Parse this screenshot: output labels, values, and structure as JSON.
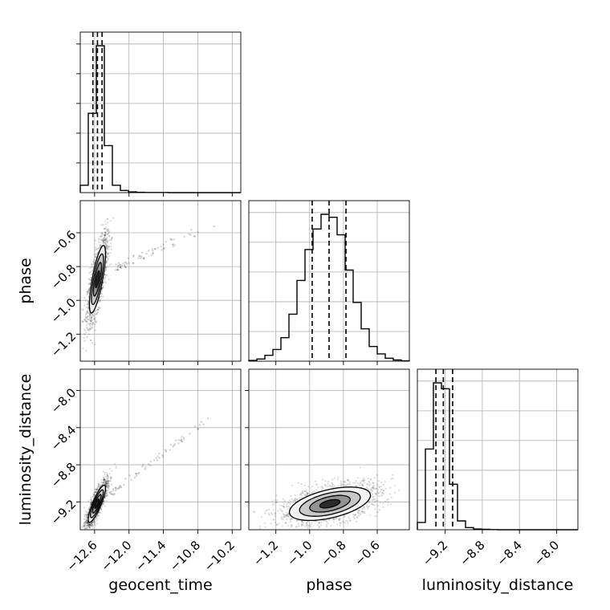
{
  "chart_data": {
    "type": "corner",
    "parameters": [
      "geocent_time",
      "phase",
      "luminosity_distance"
    ],
    "axis_labels": {
      "x": [
        "geocent_time",
        "phase",
        "luminosity_distance"
      ],
      "y": [
        "",
        "phase",
        "luminosity_distance"
      ]
    },
    "ranges": [
      [
        -12.85,
        -10.05
      ],
      [
        -1.36,
        -0.41
      ],
      [
        -9.5,
        -7.77
      ]
    ],
    "ticks": [
      {
        "values": [
          -12.6,
          -12.0,
          -11.4,
          -10.8,
          -10.2
        ],
        "labels": [
          "−12.6",
          "−12.0",
          "−11.4",
          "−10.8",
          "−10.2"
        ]
      },
      {
        "values": [
          -1.2,
          -1.0,
          -0.8,
          -0.6
        ],
        "labels": [
          "−1.2",
          "−1.0",
          "−0.8",
          "−0.6"
        ]
      },
      {
        "values": [
          -9.2,
          -8.8,
          -8.4,
          -8.0
        ],
        "labels": [
          "−9.2",
          "−8.8",
          "−8.4",
          "−8.0"
        ]
      }
    ],
    "grid": true,
    "marginals": [
      {
        "parameter": "geocent_time",
        "bin_edges": [
          -12.85,
          -12.71,
          -12.57,
          -12.43,
          -12.29,
          -12.15,
          -12.01,
          -11.87,
          -11.73,
          -11.59,
          -11.45,
          -11.31,
          -11.17,
          -11.03,
          -10.89,
          -10.75,
          -10.61,
          -10.47,
          -10.33,
          -10.19,
          -10.05
        ],
        "counts": [
          0.05,
          0.54,
          1.0,
          0.32,
          0.05,
          0.015,
          0.005,
          0.002,
          0.001,
          0.001,
          0.001,
          0,
          0,
          0,
          0,
          0,
          0,
          0,
          0,
          0
        ],
        "quantiles": [
          -12.63,
          -12.55,
          -12.47
        ]
      },
      {
        "parameter": "phase",
        "bin_edges": [
          -1.36,
          -1.3125,
          -1.265,
          -1.2175,
          -1.17,
          -1.1225,
          -1.075,
          -1.0275,
          -0.98,
          -0.9325,
          -0.885,
          -0.8375,
          -0.79,
          -0.7425,
          -0.695,
          -0.6475,
          -0.6,
          -0.5525,
          -0.505,
          -0.4575,
          -0.41
        ],
        "counts": [
          0.005,
          0.015,
          0.04,
          0.08,
          0.16,
          0.32,
          0.55,
          0.76,
          0.9,
          1.0,
          0.98,
          0.86,
          0.62,
          0.4,
          0.22,
          0.1,
          0.05,
          0.02,
          0.008,
          0.002
        ],
        "quantiles": [
          -0.985,
          -0.885,
          -0.785
        ]
      },
      {
        "parameter": "luminosity_distance",
        "bin_edges": [
          -9.5,
          -9.4135,
          -9.327,
          -9.2405,
          -9.154,
          -9.0675,
          -8.981,
          -8.8945,
          -8.808,
          -8.7215,
          -8.635,
          -8.5485,
          -8.462,
          -8.3755,
          -8.289,
          -8.2025,
          -8.116,
          -8.0295,
          -7.943,
          -7.8565,
          -7.77
        ],
        "counts": [
          0.05,
          0.55,
          1.0,
          0.96,
          0.31,
          0.06,
          0.015,
          0.005,
          0.003,
          0.001,
          0,
          0,
          0,
          0,
          0,
          0,
          0,
          0,
          0,
          0
        ],
        "quantiles": [
          -9.3,
          -9.22,
          -9.12
        ]
      }
    ],
    "joint": [
      {
        "x": "geocent_time",
        "y": "phase",
        "center": [
          -12.55,
          -0.875
        ],
        "std": [
          0.07,
          0.1
        ],
        "correlation": 0.75,
        "tail": {
          "x": [
            -12.2,
            -10.5
          ],
          "y": [
            -0.8,
            -0.55
          ]
        }
      },
      {
        "x": "geocent_time",
        "y": "luminosity_distance",
        "center": [
          -12.56,
          -9.22
        ],
        "std": [
          0.075,
          0.1
        ],
        "correlation": 0.85,
        "tail": {
          "x": [
            -12.3,
            -10.6
          ],
          "y": [
            -9.1,
            -8.3
          ]
        }
      },
      {
        "x": "phase",
        "y": "luminosity_distance",
        "center": [
          -0.88,
          -9.22
        ],
        "std": [
          0.12,
          0.09
        ],
        "correlation": 0.5,
        "tail": null
      }
    ]
  }
}
